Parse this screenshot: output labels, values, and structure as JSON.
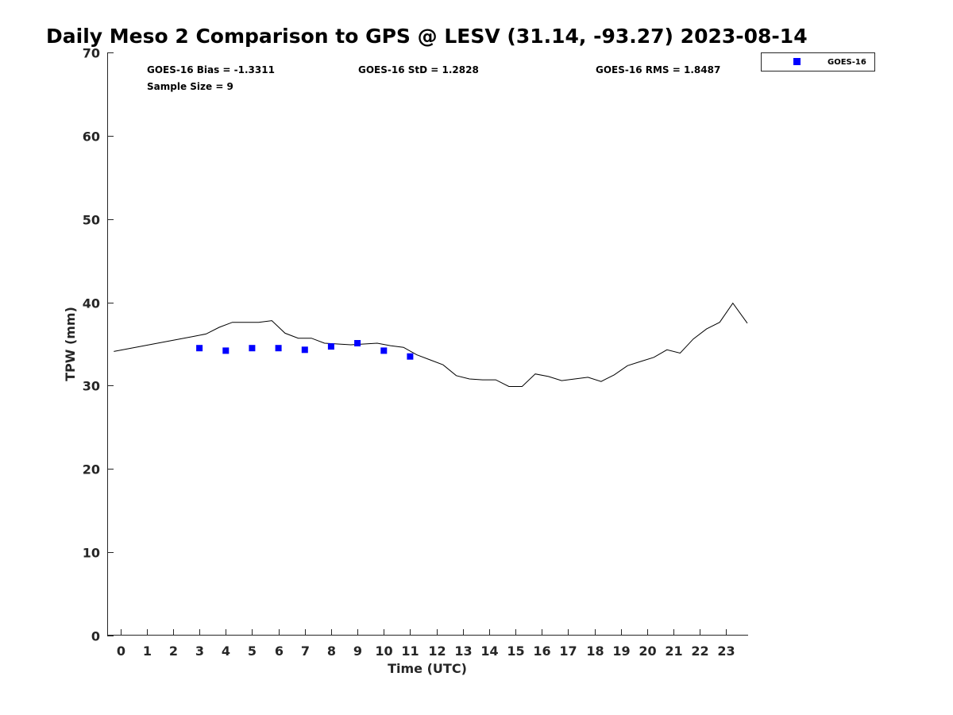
{
  "chart_data": {
    "type": "line",
    "title": "Daily Meso 2 Comparison to GPS @ LESV (31.14, -93.27) 2023-08-14",
    "xlabel": "Time (UTC)",
    "ylabel": "TPW (mm)",
    "xlim": [
      -0.5,
      23.8
    ],
    "ylim": [
      0,
      70
    ],
    "x_ticks": [
      0,
      1,
      2,
      3,
      4,
      5,
      6,
      7,
      8,
      9,
      10,
      11,
      12,
      13,
      14,
      15,
      16,
      17,
      18,
      19,
      20,
      21,
      22,
      23
    ],
    "y_ticks": [
      0,
      10,
      20,
      30,
      40,
      50,
      60,
      70
    ],
    "stats": {
      "bias": "GOES-16 Bias = -1.3311",
      "std": "GOES-16 StD = 1.2828",
      "rms": "GOES-16 RMS = 1.8487",
      "sample_size": "Sample Size = 9"
    },
    "legend": {
      "label": "GOES-16",
      "position": "top-right-outside"
    },
    "series": [
      {
        "name": "GPS",
        "style": "line",
        "color": "#000000",
        "x": [
          -0.25,
          0.25,
          0.75,
          1.25,
          1.75,
          2.25,
          2.75,
          3.25,
          3.75,
          4.25,
          4.75,
          5.25,
          5.75,
          6.25,
          6.75,
          7.25,
          7.75,
          8.25,
          8.75,
          9.25,
          9.75,
          10.25,
          10.75,
          11.25,
          11.75,
          12.25,
          12.75,
          13.25,
          13.75,
          14.25,
          14.75,
          15.25,
          15.75,
          16.25,
          16.75,
          17.25,
          17.75,
          18.25,
          18.75,
          19.25,
          19.75,
          20.25,
          20.75,
          21.25,
          21.75,
          22.25,
          22.75,
          23.25,
          23.8
        ],
        "values": [
          34.1,
          34.4,
          34.7,
          35.0,
          35.3,
          35.6,
          35.9,
          36.2,
          37.0,
          37.6,
          37.6,
          37.6,
          37.8,
          36.3,
          35.7,
          35.7,
          35.1,
          35.0,
          34.9,
          35.0,
          35.1,
          34.8,
          34.6,
          33.7,
          33.1,
          32.5,
          31.2,
          30.8,
          30.7,
          30.7,
          29.9,
          29.9,
          31.4,
          31.1,
          30.6,
          30.8,
          31.0,
          30.5,
          31.3,
          32.4,
          32.9,
          33.4,
          34.3,
          33.9,
          35.6,
          36.8,
          37.6,
          39.9,
          37.5
        ]
      },
      {
        "name": "GOES-16",
        "style": "marker",
        "color": "#0000ff",
        "x": [
          3,
          4,
          5,
          6,
          7,
          8,
          9,
          10,
          11
        ],
        "values": [
          34.5,
          34.2,
          34.5,
          34.5,
          34.3,
          34.7,
          35.1,
          34.2,
          33.5
        ]
      }
    ]
  }
}
